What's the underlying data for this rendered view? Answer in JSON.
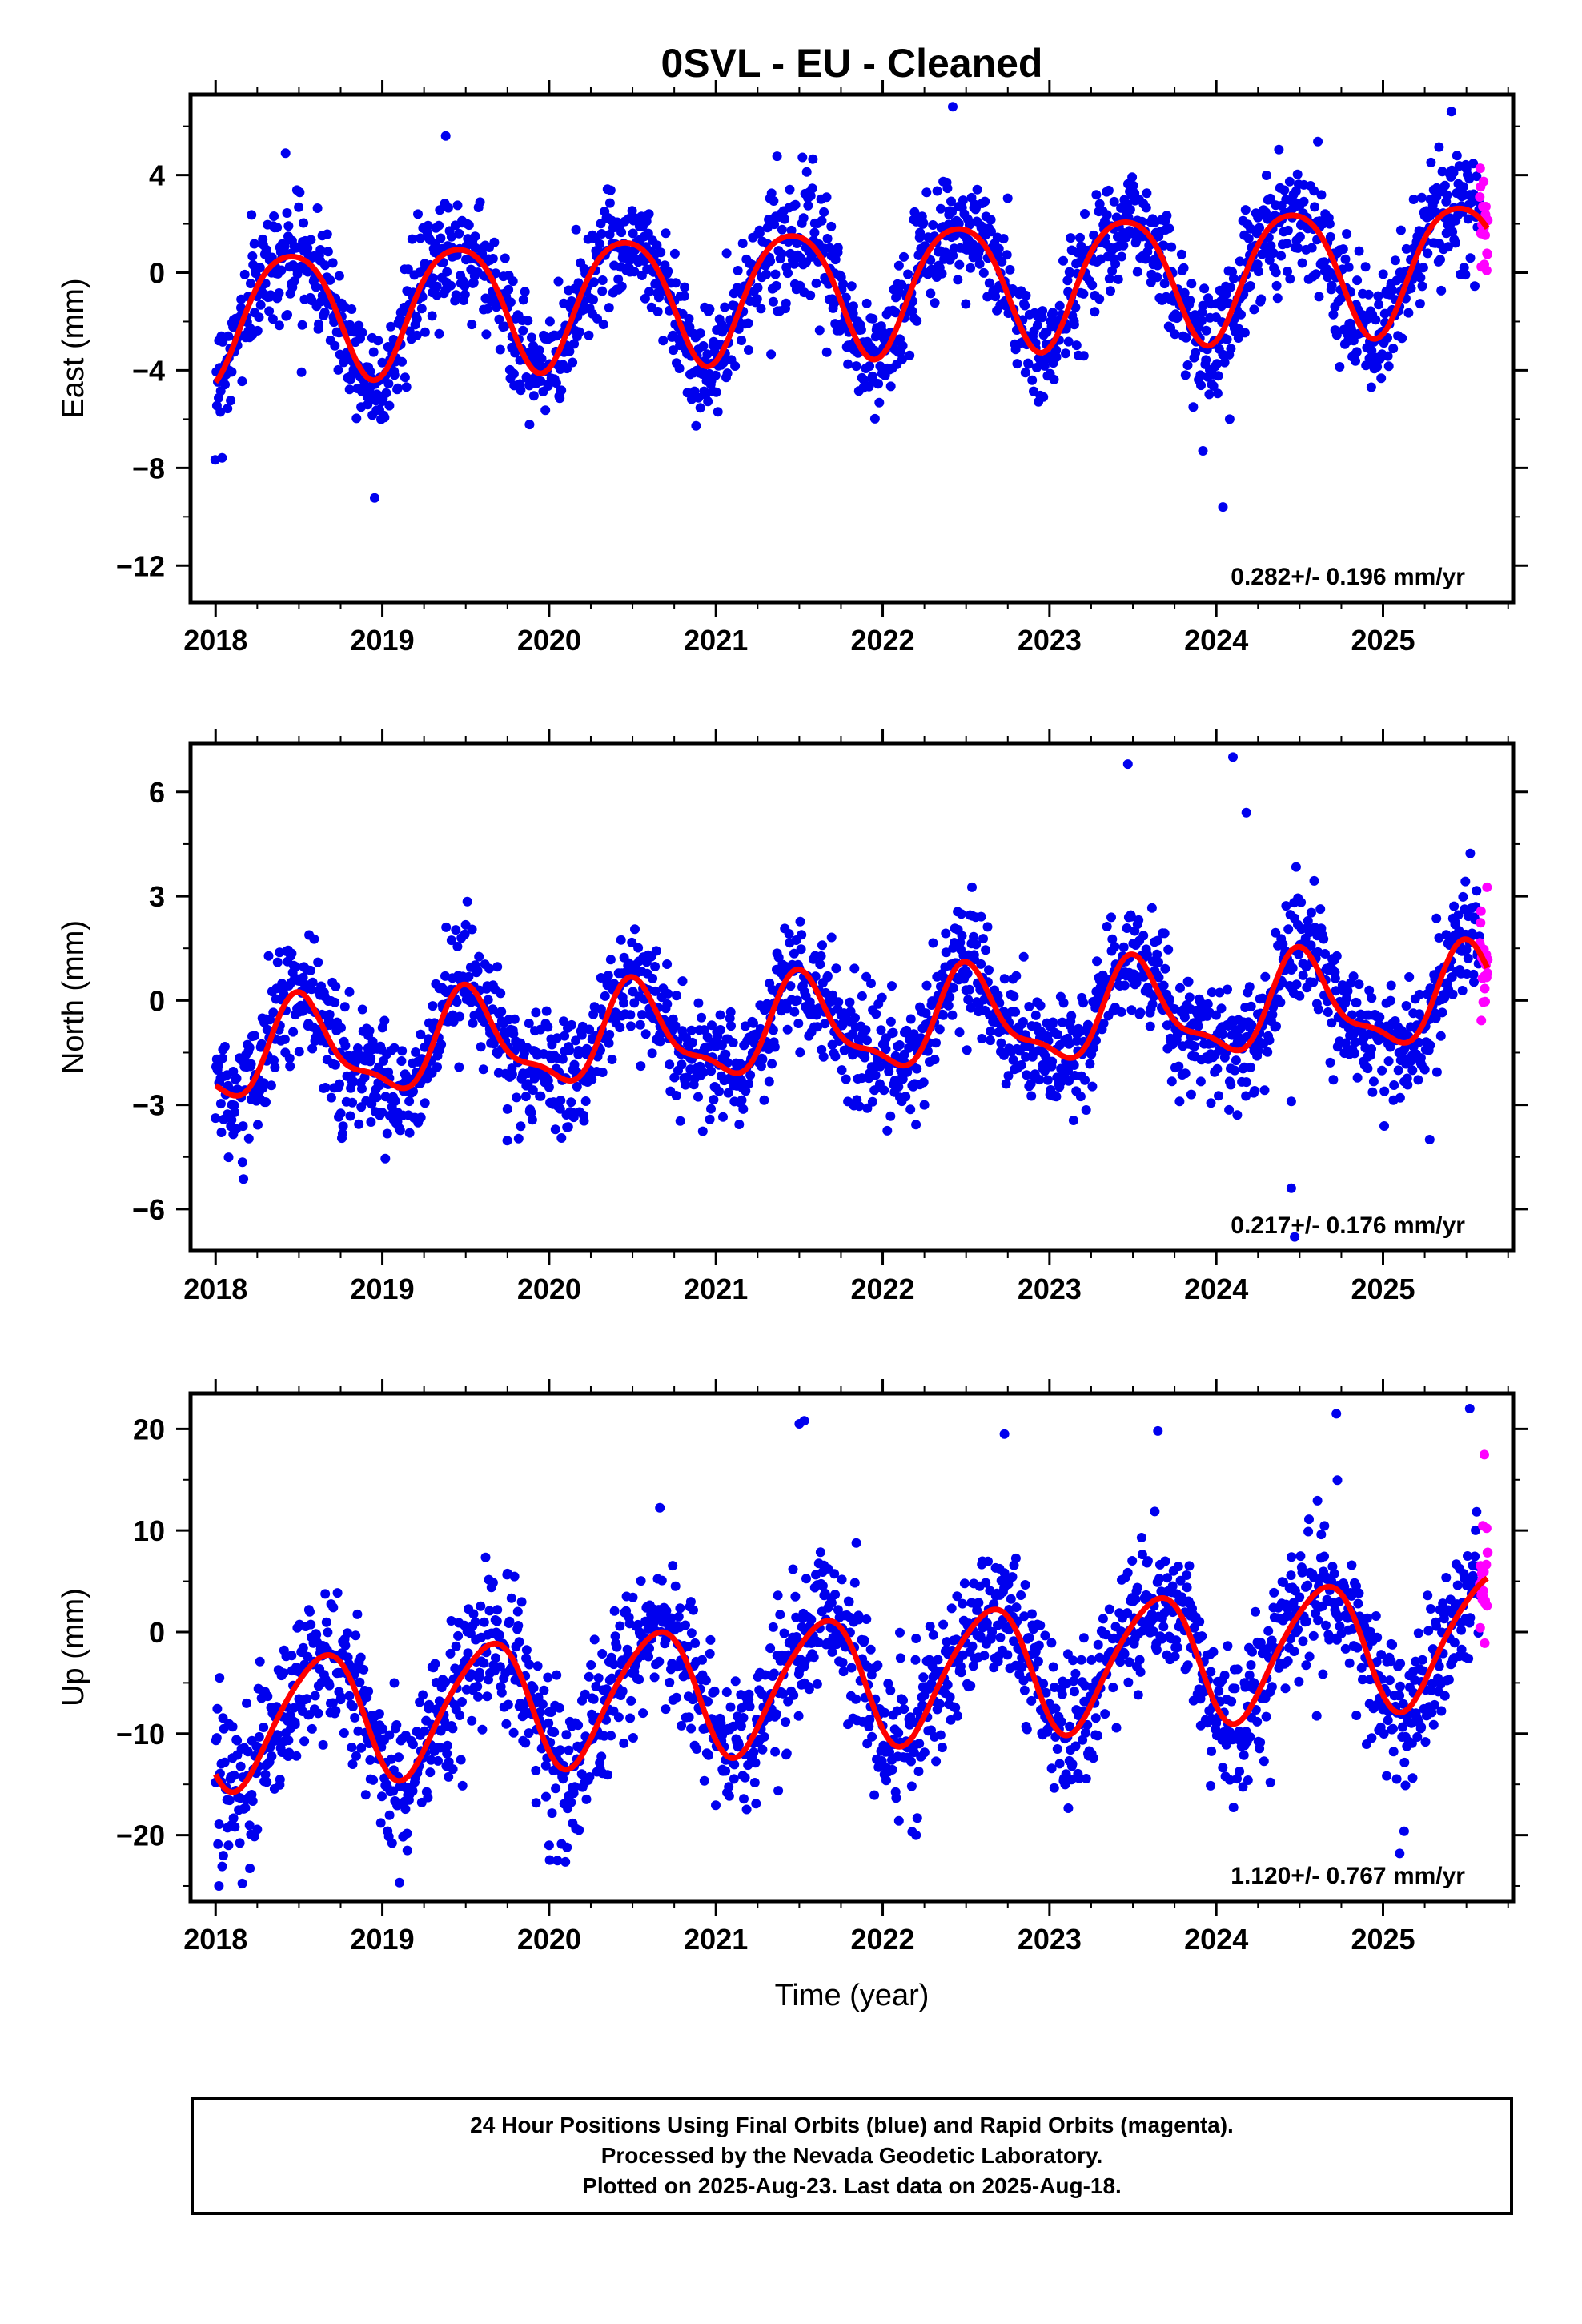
{
  "page": {
    "title": "0SVL  - EU - Cleaned",
    "footer": [
      "24 Hour Positions Using Final Orbits (blue) and Rapid Orbits (magenta).",
      "Processed by the Nevada Geodetic Laboratory.",
      "Plotted on 2025-Aug-23. Last data on 2025-Aug-18."
    ]
  },
  "chart_data": [
    {
      "type": "scatter",
      "id": "east",
      "ylabel": "East (mm)",
      "xlabel": "",
      "xlim": [
        2017.85,
        2025.78
      ],
      "ylim": [
        -13.5,
        7.3
      ],
      "xticks": [
        2018,
        2019,
        2020,
        2021,
        2022,
        2023,
        2024,
        2025
      ],
      "yticks": [
        4,
        0,
        -4,
        -8,
        -12
      ],
      "rate_text": "0.282+/- 0.196 mm/yr",
      "colors": {
        "final": "#0000ee",
        "rapid": "#ff00ff",
        "model": "#ff0000"
      },
      "model": {
        "mean": -0.65,
        "rate": 0.282,
        "annual_amp": 2.6,
        "annual_peak": 0.45,
        "semi_amp": 0.35,
        "semi_peak": 0.2
      },
      "scatter": {
        "noise_sd": 1.15,
        "count": 1900,
        "rapid_count": 22,
        "rapid_start": 2025.58
      },
      "outliers": [
        [
          2024.04,
          -9.6
        ],
        [
          2023.92,
          -7.3
        ],
        [
          2022.42,
          6.8
        ],
        [
          2025.41,
          6.6
        ],
        [
          2019.38,
          5.6
        ],
        [
          2018.42,
          4.9
        ],
        [
          2024.08,
          -6.0
        ]
      ]
    },
    {
      "type": "scatter",
      "id": "north",
      "ylabel": "North (mm)",
      "xlabel": "",
      "xlim": [
        2017.85,
        2025.78
      ],
      "ylim": [
        -7.2,
        7.4
      ],
      "xticks": [
        2018,
        2019,
        2020,
        2021,
        2022,
        2023,
        2024,
        2025
      ],
      "yticks": [
        6,
        3,
        0,
        -3,
        -6
      ],
      "rate_text": "0.217+/- 0.176 mm/yr",
      "colors": {
        "final": "#0000ee",
        "rapid": "#ff00ff",
        "model": "#ff0000"
      },
      "model": {
        "mean": -0.75,
        "rate": 0.217,
        "annual_amp": 1.3,
        "annual_peak": 0.52,
        "semi_amp": 0.45,
        "semi_peak": 0.47
      },
      "scatter": {
        "noise_sd": 0.85,
        "count": 1900,
        "rapid_count": 22,
        "rapid_start": 2025.58
      },
      "outliers": [
        [
          2023.47,
          6.8
        ],
        [
          2024.1,
          7.0
        ],
        [
          2024.18,
          5.4
        ],
        [
          2024.45,
          -5.4
        ],
        [
          2024.47,
          -6.8
        ],
        [
          2024.45,
          -2.9
        ],
        [
          2025.28,
          -4.0
        ],
        [
          2023.85,
          -2.7
        ]
      ]
    },
    {
      "type": "scatter",
      "id": "up",
      "ylabel": "Up (mm)",
      "xlabel": "Time (year)",
      "xlim": [
        2017.85,
        2025.78
      ],
      "ylim": [
        -26.5,
        23.5
      ],
      "xticks": [
        2018,
        2019,
        2020,
        2021,
        2022,
        2023,
        2024,
        2025
      ],
      "yticks": [
        20,
        10,
        0,
        -10,
        -20
      ],
      "rate_text": "1.120+/- 0.767 mm/yr",
      "colors": {
        "final": "#0000ee",
        "rapid": "#ff00ff",
        "model": "#ff0000"
      },
      "model": {
        "mean": -4.8,
        "rate": 1.12,
        "annual_amp": 6.3,
        "annual_peak": 0.63,
        "semi_amp": 0.8,
        "semi_peak": 0.3
      },
      "scatter": {
        "noise_sd": 3.6,
        "count": 1900,
        "rapid_count": 22,
        "rapid_start": 2025.58
      },
      "outliers": [
        [
          2018.02,
          -25.0
        ],
        [
          2021.5,
          20.5
        ],
        [
          2021.53,
          20.8
        ],
        [
          2022.73,
          19.5
        ],
        [
          2023.65,
          19.8
        ],
        [
          2024.72,
          21.5
        ],
        [
          2025.52,
          22.0
        ],
        [
          2020.0,
          -21.0
        ],
        [
          2020.05,
          -22.5
        ],
        [
          2019.15,
          -21.5
        ],
        [
          2022.2,
          -20.0
        ],
        [
          2025.1,
          -21.8
        ]
      ]
    }
  ]
}
